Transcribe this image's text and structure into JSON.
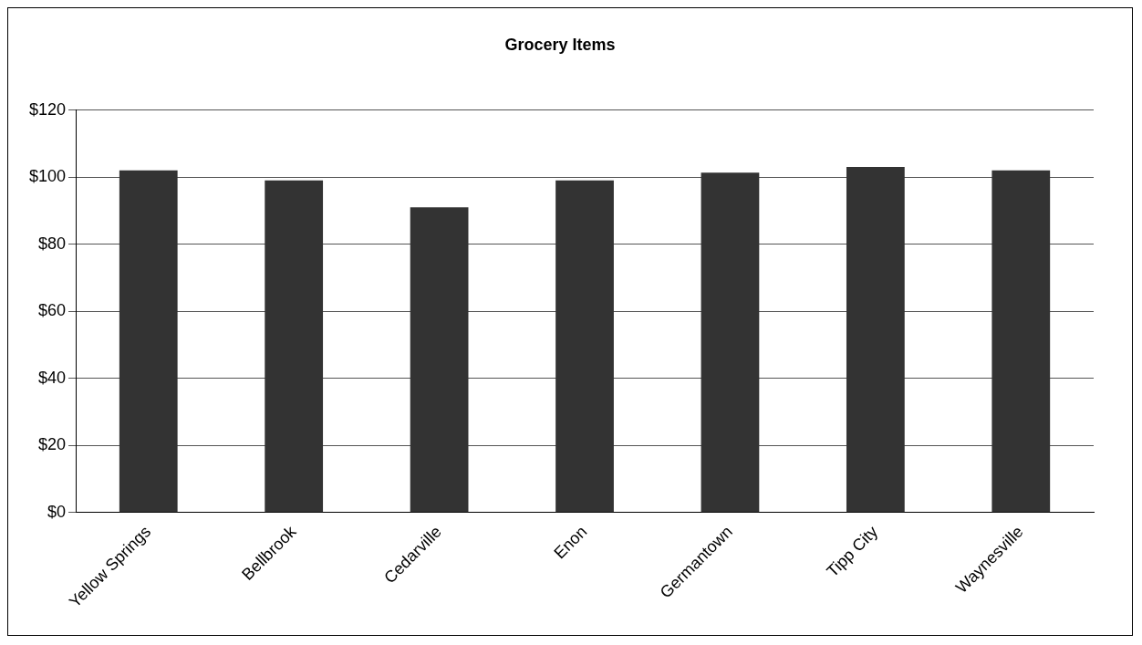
{
  "chart_data": {
    "type": "bar",
    "title": "Grocery Items",
    "categories": [
      "Yellow Springs",
      "Bellbrook",
      "Cedarville",
      "Enon",
      "Germantown",
      "Tipp City",
      "Waynesville"
    ],
    "values": [
      102,
      99,
      91,
      99,
      101.3,
      103,
      102
    ],
    "color": "#333333",
    "ylim": [
      0,
      120
    ],
    "yticks": [
      {
        "value": 0,
        "label": "$0"
      },
      {
        "value": 20,
        "label": "$20"
      },
      {
        "value": 40,
        "label": "$40"
      },
      {
        "value": 60,
        "label": "$60"
      },
      {
        "value": 80,
        "label": "$80"
      },
      {
        "value": 100,
        "label": "$100"
      },
      {
        "value": 120,
        "label": "$120"
      }
    ],
    "grid": "y",
    "legend": false
  }
}
